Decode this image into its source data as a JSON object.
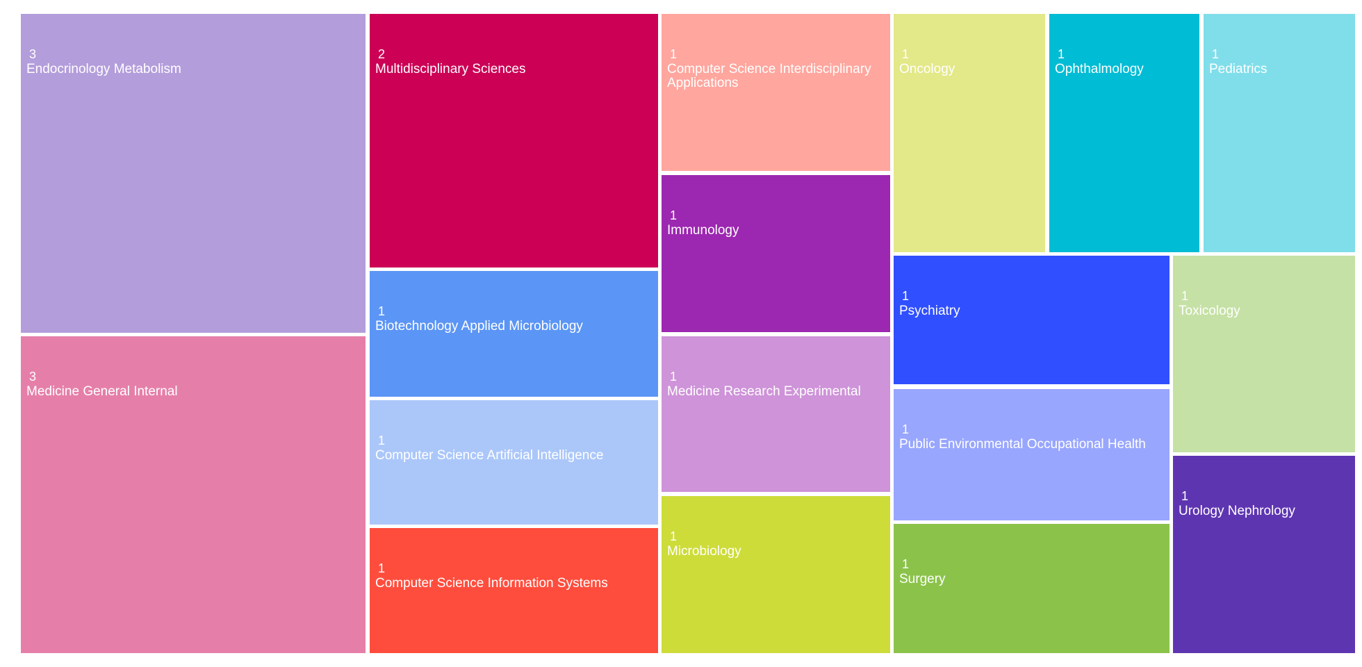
{
  "chart_data": {
    "type": "treemap",
    "title": "",
    "items": [
      {
        "label": "Endocrinology Metabolism",
        "value": 3,
        "color": "#B39DDB"
      },
      {
        "label": "Medicine General Internal",
        "value": 3,
        "color": "#E57FA9"
      },
      {
        "label": "Multidisciplinary Sciences",
        "value": 2,
        "color": "#CC0055"
      },
      {
        "label": "Biotechnology Applied Microbiology",
        "value": 1,
        "color": "#5B95F5"
      },
      {
        "label": "Computer Science Artificial Intelligence",
        "value": 1,
        "color": "#ABC7FA"
      },
      {
        "label": "Computer Science Information Systems",
        "value": 1,
        "color": "#FF4D3D"
      },
      {
        "label": "Computer Science Interdisciplinary Applications",
        "value": 1,
        "color": "#FFA69E"
      },
      {
        "label": "Immunology",
        "value": 1,
        "color": "#9C27B0"
      },
      {
        "label": "Medicine Research Experimental",
        "value": 1,
        "color": "#CE93D8"
      },
      {
        "label": "Microbiology",
        "value": 1,
        "color": "#CDDC39"
      },
      {
        "label": "Oncology",
        "value": 1,
        "color": "#E3E889"
      },
      {
        "label": "Ophthalmology",
        "value": 1,
        "color": "#00BCD4"
      },
      {
        "label": "Pediatrics",
        "value": 1,
        "color": "#80DEEA"
      },
      {
        "label": "Psychiatry",
        "value": 1,
        "color": "#304FFE"
      },
      {
        "label": "Public Environmental Occupational Health",
        "value": 1,
        "color": "#98A6FE"
      },
      {
        "label": "Surgery",
        "value": 1,
        "color": "#8BC34A"
      },
      {
        "label": "Toxicology",
        "value": 1,
        "color": "#C5E1A5"
      },
      {
        "label": "Urology Nephrology",
        "value": 1,
        "color": "#5E35B1"
      }
    ]
  }
}
